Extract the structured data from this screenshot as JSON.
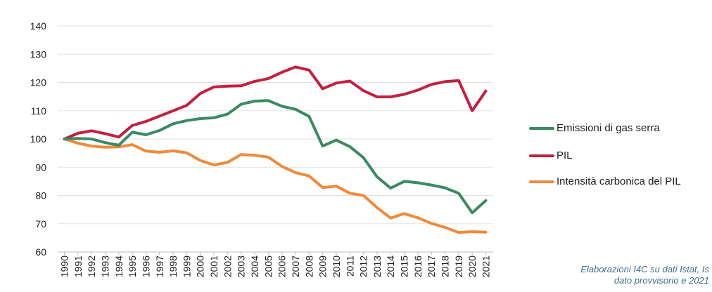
{
  "chart_data": {
    "type": "line",
    "categories": [
      "1990",
      "1991",
      "1992",
      "1993",
      "1994",
      "1995",
      "1996",
      "1997",
      "1998",
      "1999",
      "2000",
      "2001",
      "2002",
      "2003",
      "2004",
      "2005",
      "2006",
      "2007",
      "2008",
      "2009",
      "2010",
      "2011",
      "2012",
      "2013",
      "2014",
      "2015",
      "2016",
      "2017",
      "2018",
      "2019",
      "2020",
      "2021"
    ],
    "ylim": [
      60,
      140
    ],
    "yticks": [
      60,
      70,
      80,
      90,
      100,
      110,
      120,
      130,
      140
    ],
    "grid": true,
    "legend_position": "right",
    "series": [
      {
        "name": "Emissioni di gas serra",
        "color": "#3a8a64",
        "values": [
          100,
          100.2,
          100,
          98.7,
          97.8,
          102.4,
          101.5,
          103,
          105.4,
          106.5,
          107.2,
          107.5,
          108.8,
          112.3,
          113.4,
          113.6,
          111.6,
          110.5,
          108,
          97.5,
          99.6,
          97.3,
          93.4,
          86.6,
          82.6,
          85,
          84.5,
          83.7,
          82.7,
          80.8,
          73.9,
          78.2
        ]
      },
      {
        "name": "PIL",
        "color": "#c3203f",
        "values": [
          100,
          102,
          102.9,
          101.9,
          100.7,
          104.8,
          106.2,
          108.1,
          110,
          111.9,
          116.1,
          118.4,
          118.7,
          118.8,
          120.4,
          121.4,
          123.6,
          125.5,
          124.4,
          117.8,
          119.8,
          120.5,
          117.1,
          114.9,
          114.9,
          115.8,
          117.3,
          119.3,
          120.3,
          120.7,
          110,
          117
        ]
      },
      {
        "name": "Intensità carbonica del PIL",
        "color": "#f08a3c",
        "values": [
          100,
          98.5,
          97.5,
          97.1,
          97.2,
          98,
          95.7,
          95.3,
          95.8,
          95.1,
          92.4,
          90.8,
          91.7,
          94.5,
          94.2,
          93.6,
          90.3,
          88.1,
          86.9,
          82.8,
          83.3,
          80.8,
          80,
          75.7,
          72,
          73.6,
          72.1,
          70.1,
          68.7,
          66.9,
          67.2,
          67
        ]
      }
    ]
  },
  "source_note": {
    "line1": "Elaborazioni I4C su dati Istat, Is",
    "line2": "dato provvisorio e 2021"
  }
}
